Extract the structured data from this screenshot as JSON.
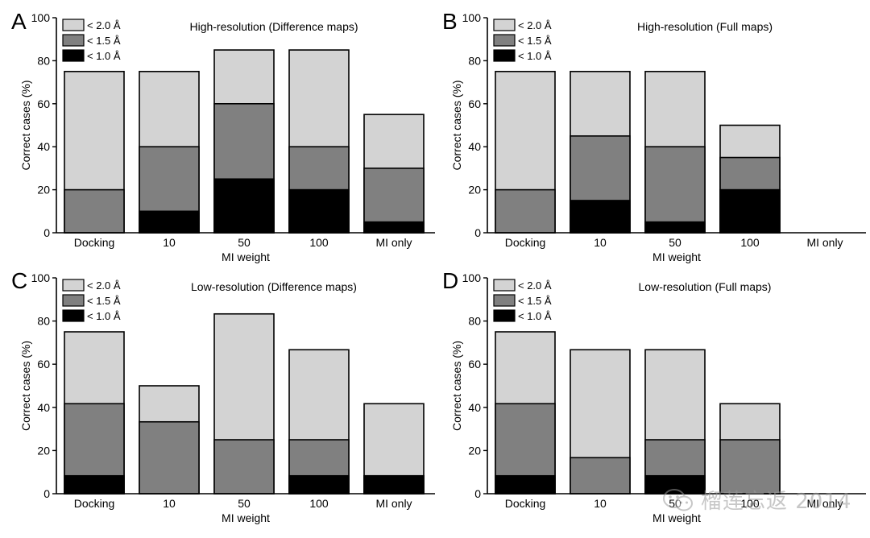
{
  "chart_data": [
    {
      "type": "bar",
      "panel_label": "A",
      "title": "High-resolution (Difference maps)",
      "xlabel": "MI weight",
      "ylabel": "Correct cases (%)",
      "ylim": [
        0,
        100
      ],
      "yticks": [
        0,
        20,
        40,
        60,
        80,
        100
      ],
      "categories": [
        "Docking",
        "10",
        "50",
        "100",
        "MI only"
      ],
      "series": [
        {
          "name": "< 2.0 Å",
          "values": [
            75,
            75,
            85,
            85,
            55
          ]
        },
        {
          "name": "< 1.5 Å",
          "values": [
            20,
            40,
            60,
            40,
            30
          ]
        },
        {
          "name": "< 1.0 Å",
          "values": [
            0,
            10,
            25,
            20,
            5
          ]
        }
      ],
      "legend_position": "top-left"
    },
    {
      "type": "bar",
      "panel_label": "B",
      "title": "High-resolution (Full maps)",
      "xlabel": "MI weight",
      "ylabel": "Correct cases (%)",
      "ylim": [
        0,
        100
      ],
      "yticks": [
        0,
        20,
        40,
        60,
        80,
        100
      ],
      "categories": [
        "Docking",
        "10",
        "50",
        "100",
        "MI only"
      ],
      "series": [
        {
          "name": "< 2.0 Å",
          "values": [
            75,
            75,
            75,
            50,
            0
          ]
        },
        {
          "name": "< 1.5 Å",
          "values": [
            20,
            45,
            40,
            35,
            0
          ]
        },
        {
          "name": "< 1.0 Å",
          "values": [
            0,
            15,
            5,
            20,
            0
          ]
        }
      ],
      "legend_position": "top-left"
    },
    {
      "type": "bar",
      "panel_label": "C",
      "title": "Low-resolution (Difference maps)",
      "xlabel": "MI weight",
      "ylabel": "Correct cases (%)",
      "ylim": [
        0,
        100
      ],
      "yticks": [
        0,
        20,
        40,
        60,
        80,
        100
      ],
      "categories": [
        "Docking",
        "10",
        "50",
        "100",
        "MI only"
      ],
      "series": [
        {
          "name": "< 2.0 Å",
          "values": [
            75,
            50,
            83.3,
            66.7,
            41.7
          ]
        },
        {
          "name": "< 1.5 Å",
          "values": [
            41.7,
            33.3,
            25,
            25,
            8.3
          ]
        },
        {
          "name": "< 1.0 Å",
          "values": [
            8.3,
            0,
            0,
            8.3,
            8.3
          ]
        }
      ],
      "legend_position": "top-left"
    },
    {
      "type": "bar",
      "panel_label": "D",
      "title": "Low-resolution (Full maps)",
      "xlabel": "MI weight",
      "ylabel": "Correct cases (%)",
      "ylim": [
        0,
        100
      ],
      "yticks": [
        0,
        20,
        40,
        60,
        80,
        100
      ],
      "categories": [
        "Docking",
        "10",
        "50",
        "100",
        "MI only"
      ],
      "series": [
        {
          "name": "< 2.0 Å",
          "values": [
            75,
            66.7,
            66.7,
            41.7,
            0
          ]
        },
        {
          "name": "< 1.5 Å",
          "values": [
            41.7,
            16.7,
            25,
            25,
            0
          ]
        },
        {
          "name": "< 1.0 Å",
          "values": [
            8.3,
            0,
            8.3,
            0,
            0
          ]
        }
      ],
      "legend_position": "top-left"
    }
  ],
  "colors": {
    "lt2": "#d3d3d3",
    "lt15": "#808080",
    "lt1": "#000000"
  },
  "watermark": {
    "icon": "wechat-icon",
    "text": "榴莲忘返 2014"
  }
}
